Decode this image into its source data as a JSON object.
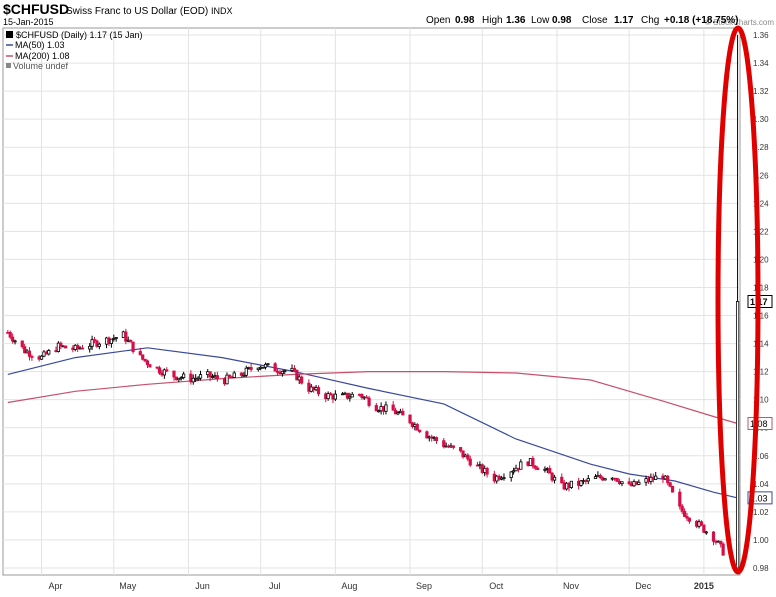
{
  "header": {
    "symbol": "$CHFUSD",
    "name": "Swiss Franc to US Dollar (EOD)",
    "exchange": "INDX",
    "date": "15-Jan-2015",
    "watermark": "© StockCharts.com",
    "ohlc": {
      "open_label": "Open",
      "open": "0.98",
      "high_label": "High",
      "high": "1.36",
      "low_label": "Low",
      "low": "0.98",
      "close_label": "Close",
      "close": "1.17",
      "chg_label": "Chg",
      "chg": "+0.18 (+18.75%)"
    }
  },
  "legend": {
    "price": "$CHFUSD (Daily) 1.17 (15 Jan)",
    "ma50": "MA(50) 1.03",
    "ma200": "MA(200) 1.08",
    "volume": "Volume undef"
  },
  "colors": {
    "up_candle": "#000000",
    "down_candle": "#d40f47",
    "ma50": "#3a4a9a",
    "ma200": "#c8506a",
    "annotation": "#e00000",
    "grid": "#e3e3e3"
  },
  "chart_data": {
    "type": "candlestick",
    "x_labels": [
      "Apr",
      "May",
      "Jun",
      "Jul",
      "Aug",
      "Sep",
      "Oct",
      "Nov",
      "Dec",
      "2015"
    ],
    "y_ticks": [
      "0.98",
      "1.00",
      "1.02",
      "1.04",
      "1.06",
      "1.08",
      "1.10",
      "1.12",
      "1.14",
      "1.16",
      "1.18",
      "1.20",
      "1.22",
      "1.24",
      "1.26",
      "1.28",
      "1.30",
      "1.32",
      "1.34",
      "1.36"
    ],
    "ylim": [
      0.975,
      1.365
    ],
    "grid": true,
    "close_approx": [
      [
        "2014-03-18",
        1.148
      ],
      [
        "2014-03-25",
        1.135
      ],
      [
        "2014-04-01",
        1.13
      ],
      [
        "2014-04-08",
        1.138
      ],
      [
        "2014-04-15",
        1.136
      ],
      [
        "2014-04-22",
        1.14
      ],
      [
        "2014-04-29",
        1.143
      ],
      [
        "2014-05-05",
        1.146
      ],
      [
        "2014-05-12",
        1.13
      ],
      [
        "2014-05-19",
        1.122
      ],
      [
        "2014-05-26",
        1.117
      ],
      [
        "2014-06-02",
        1.115
      ],
      [
        "2014-06-09",
        1.117
      ],
      [
        "2014-06-16",
        1.114
      ],
      [
        "2014-06-23",
        1.118
      ],
      [
        "2014-06-30",
        1.125
      ],
      [
        "2014-07-07",
        1.122
      ],
      [
        "2014-07-14",
        1.12
      ],
      [
        "2014-07-21",
        1.108
      ],
      [
        "2014-07-28",
        1.103
      ],
      [
        "2014-08-04",
        1.102
      ],
      [
        "2014-08-11",
        1.104
      ],
      [
        "2014-08-18",
        1.095
      ],
      [
        "2014-08-25",
        1.092
      ],
      [
        "2014-09-01",
        1.085
      ],
      [
        "2014-09-08",
        1.075
      ],
      [
        "2014-09-15",
        1.068
      ],
      [
        "2014-09-22",
        1.062
      ],
      [
        "2014-09-29",
        1.052
      ],
      [
        "2014-10-06",
        1.044
      ],
      [
        "2014-10-13",
        1.05
      ],
      [
        "2014-10-20",
        1.056
      ],
      [
        "2014-10-27",
        1.05
      ],
      [
        "2014-11-03",
        1.038
      ],
      [
        "2014-11-10",
        1.04
      ],
      [
        "2014-11-17",
        1.044
      ],
      [
        "2014-11-24",
        1.046
      ],
      [
        "2014-12-01",
        1.038
      ],
      [
        "2014-12-08",
        1.042
      ],
      [
        "2014-12-15",
        1.046
      ],
      [
        "2014-12-22",
        1.022
      ],
      [
        "2014-12-29",
        1.012
      ],
      [
        "2015-01-05",
        1.002
      ],
      [
        "2015-01-12",
        0.984
      ],
      [
        "2015-01-15",
        1.17
      ]
    ],
    "series": [
      {
        "name": "MA(50)",
        "points": [
          [
            "2014-03-18",
            1.118
          ],
          [
            "2014-04-15",
            1.13
          ],
          [
            "2014-05-15",
            1.137
          ],
          [
            "2014-06-15",
            1.13
          ],
          [
            "2014-07-15",
            1.12
          ],
          [
            "2014-08-15",
            1.108
          ],
          [
            "2014-09-15",
            1.097
          ],
          [
            "2014-10-15",
            1.072
          ],
          [
            "2014-11-15",
            1.054
          ],
          [
            "2014-12-01",
            1.047
          ],
          [
            "2014-12-20",
            1.042
          ],
          [
            "2015-01-05",
            1.034
          ],
          [
            "2015-01-15",
            1.03
          ]
        ]
      },
      {
        "name": "MA(200)",
        "points": [
          [
            "2014-03-18",
            1.098
          ],
          [
            "2014-04-15",
            1.106
          ],
          [
            "2014-05-15",
            1.111
          ],
          [
            "2014-06-15",
            1.115
          ],
          [
            "2014-07-15",
            1.118
          ],
          [
            "2014-08-15",
            1.12
          ],
          [
            "2014-09-15",
            1.12
          ],
          [
            "2014-10-15",
            1.119
          ],
          [
            "2014-11-15",
            1.114
          ],
          [
            "2014-12-15",
            1.099
          ],
          [
            "2015-01-05",
            1.088
          ],
          [
            "2015-01-15",
            1.083
          ]
        ]
      }
    ],
    "last_price_label": "1.17",
    "ma200_label": "1.08",
    "ma50_label": "1.03"
  }
}
